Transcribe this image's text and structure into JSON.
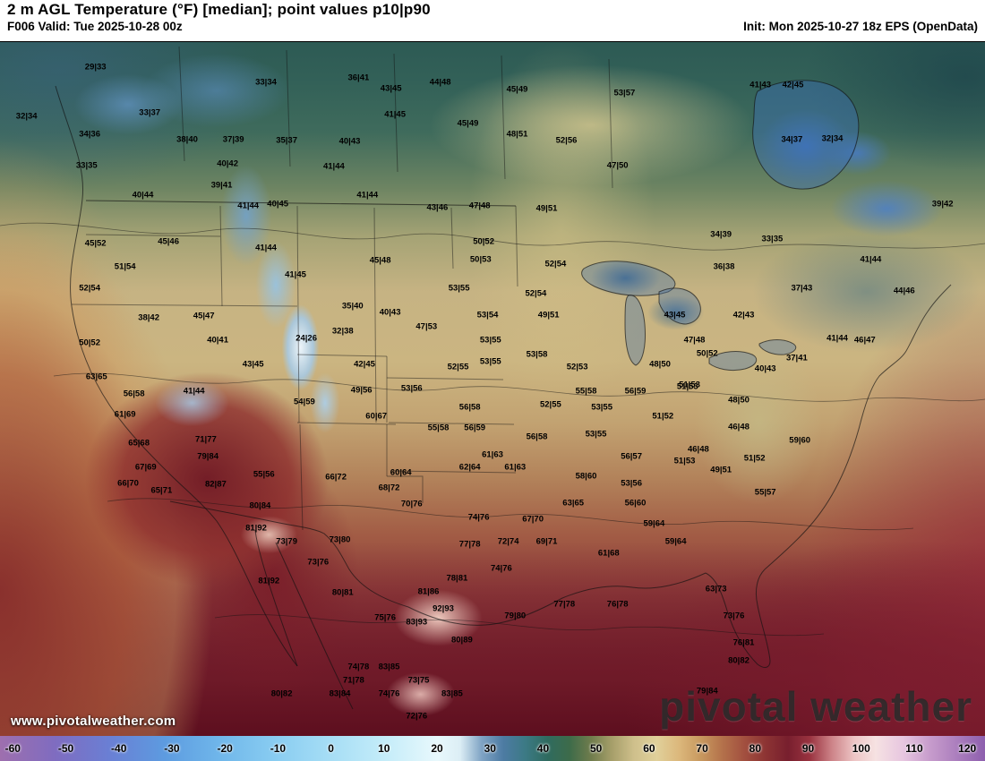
{
  "header": {
    "title": "2 m AGL Temperature (°F) [median]; point values p10|p90",
    "valid": "F006 Valid: Tue 2025-10-28 00z",
    "init": "Init: Mon 2025-10-27 18z EPS (OpenData)"
  },
  "watermark": {
    "site": "www.pivotalweather.com",
    "brand": "pivotal weather"
  },
  "colorbar": {
    "ticks": [
      -60,
      -50,
      -40,
      -30,
      -20,
      -10,
      0,
      10,
      20,
      30,
      40,
      50,
      60,
      70,
      80,
      90,
      100,
      110,
      120
    ],
    "stops": [
      {
        "t": -60,
        "c": "#9e6fae"
      },
      {
        "t": -50,
        "c": "#7f6cc0"
      },
      {
        "t": -40,
        "c": "#6a7fd4"
      },
      {
        "t": -30,
        "c": "#5d9be0"
      },
      {
        "t": -20,
        "c": "#6fb6ea"
      },
      {
        "t": -10,
        "c": "#88ccf1"
      },
      {
        "t": 0,
        "c": "#a5ddf5"
      },
      {
        "t": 10,
        "c": "#c3ecf9"
      },
      {
        "t": 20,
        "c": "#e8f8fc"
      },
      {
        "t": 24,
        "c": "#dceef5"
      },
      {
        "t": 28,
        "c": "#7fa3c4"
      },
      {
        "t": 32,
        "c": "#4d7ba3"
      },
      {
        "t": 36,
        "c": "#3c7a85"
      },
      {
        "t": 40,
        "c": "#2f6b5f"
      },
      {
        "t": 44,
        "c": "#3d6b4a"
      },
      {
        "t": 48,
        "c": "#6f7c4c"
      },
      {
        "t": 52,
        "c": "#a8a06b"
      },
      {
        "t": 56,
        "c": "#cfc08c"
      },
      {
        "t": 60,
        "c": "#e0d09a"
      },
      {
        "t": 64,
        "c": "#dcb87c"
      },
      {
        "t": 68,
        "c": "#c8995f"
      },
      {
        "t": 72,
        "c": "#b4724b"
      },
      {
        "t": 76,
        "c": "#a24f3f"
      },
      {
        "t": 80,
        "c": "#8c3333"
      },
      {
        "t": 84,
        "c": "#781f2e"
      },
      {
        "t": 88,
        "c": "#99323f"
      },
      {
        "t": 92,
        "c": "#cc8287"
      },
      {
        "t": 96,
        "c": "#edc4c4"
      },
      {
        "t": 100,
        "c": "#f6e2e2"
      },
      {
        "t": 105,
        "c": "#e7c6e0"
      },
      {
        "t": 110,
        "c": "#c79ccc"
      },
      {
        "t": 120,
        "c": "#8e5fae"
      }
    ]
  },
  "points": [
    {
      "x": 9.7,
      "y": 8.8,
      "v": "29|33"
    },
    {
      "x": 27.0,
      "y": 10.8,
      "v": "33|34"
    },
    {
      "x": 36.4,
      "y": 10.2,
      "v": "36|41"
    },
    {
      "x": 39.7,
      "y": 11.6,
      "v": "43|45"
    },
    {
      "x": 44.7,
      "y": 10.8,
      "v": "44|48"
    },
    {
      "x": 52.5,
      "y": 11.8,
      "v": "45|49"
    },
    {
      "x": 63.4,
      "y": 12.2,
      "v": "53|57"
    },
    {
      "x": 77.2,
      "y": 11.2,
      "v": "41|43"
    },
    {
      "x": 80.5,
      "y": 11.2,
      "v": "42|45"
    },
    {
      "x": 2.7,
      "y": 15.3,
      "v": "32|34"
    },
    {
      "x": 15.2,
      "y": 14.8,
      "v": "33|37"
    },
    {
      "x": 9.1,
      "y": 17.6,
      "v": "34|36"
    },
    {
      "x": 19.0,
      "y": 18.4,
      "v": "38|40"
    },
    {
      "x": 23.7,
      "y": 18.4,
      "v": "37|39"
    },
    {
      "x": 29.1,
      "y": 18.5,
      "v": "35|37"
    },
    {
      "x": 35.5,
      "y": 18.6,
      "v": "40|43"
    },
    {
      "x": 40.1,
      "y": 15.1,
      "v": "41|45"
    },
    {
      "x": 47.5,
      "y": 16.2,
      "v": "45|49"
    },
    {
      "x": 52.5,
      "y": 17.6,
      "v": "48|51"
    },
    {
      "x": 57.5,
      "y": 18.5,
      "v": "52|56"
    },
    {
      "x": 80.4,
      "y": 18.4,
      "v": "34|37"
    },
    {
      "x": 84.5,
      "y": 18.2,
      "v": "32|34"
    },
    {
      "x": 8.8,
      "y": 21.8,
      "v": "33|35"
    },
    {
      "x": 23.1,
      "y": 21.5,
      "v": "40|42"
    },
    {
      "x": 33.9,
      "y": 21.9,
      "v": "41|44"
    },
    {
      "x": 62.7,
      "y": 21.8,
      "v": "47|50"
    },
    {
      "x": 22.5,
      "y": 24.4,
      "v": "39|41"
    },
    {
      "x": 14.5,
      "y": 25.6,
      "v": "40|44"
    },
    {
      "x": 37.3,
      "y": 25.6,
      "v": "41|44"
    },
    {
      "x": 25.2,
      "y": 27.1,
      "v": "41|44"
    },
    {
      "x": 28.2,
      "y": 26.8,
      "v": "40|45"
    },
    {
      "x": 44.4,
      "y": 27.3,
      "v": "43|46"
    },
    {
      "x": 48.7,
      "y": 27.1,
      "v": "47|48"
    },
    {
      "x": 55.5,
      "y": 27.4,
      "v": "49|51"
    },
    {
      "x": 95.7,
      "y": 26.8,
      "v": "39|42"
    },
    {
      "x": 9.7,
      "y": 32.0,
      "v": "45|52"
    },
    {
      "x": 17.1,
      "y": 31.8,
      "v": "45|46"
    },
    {
      "x": 27.0,
      "y": 32.6,
      "v": "41|44"
    },
    {
      "x": 49.1,
      "y": 31.8,
      "v": "50|52"
    },
    {
      "x": 73.2,
      "y": 30.8,
      "v": "34|39"
    },
    {
      "x": 78.4,
      "y": 31.4,
      "v": "33|35"
    },
    {
      "x": 73.5,
      "y": 35.1,
      "v": "36|38"
    },
    {
      "x": 12.7,
      "y": 35.1,
      "v": "51|54"
    },
    {
      "x": 38.6,
      "y": 34.2,
      "v": "45|48"
    },
    {
      "x": 48.8,
      "y": 34.1,
      "v": "50|53"
    },
    {
      "x": 56.4,
      "y": 34.7,
      "v": "52|54"
    },
    {
      "x": 30.0,
      "y": 36.1,
      "v": "41|45"
    },
    {
      "x": 88.4,
      "y": 34.1,
      "v": "41|44"
    },
    {
      "x": 81.4,
      "y": 37.9,
      "v": "37|43"
    },
    {
      "x": 91.8,
      "y": 38.2,
      "v": "44|46"
    },
    {
      "x": 9.1,
      "y": 37.9,
      "v": "52|54"
    },
    {
      "x": 46.6,
      "y": 37.9,
      "v": "53|55"
    },
    {
      "x": 54.4,
      "y": 38.6,
      "v": "52|54"
    },
    {
      "x": 68.5,
      "y": 41.4,
      "v": "43|45"
    },
    {
      "x": 55.7,
      "y": 41.4,
      "v": "49|51"
    },
    {
      "x": 75.5,
      "y": 41.4,
      "v": "42|43"
    },
    {
      "x": 85.0,
      "y": 44.5,
      "v": "41|44"
    },
    {
      "x": 87.8,
      "y": 44.7,
      "v": "46|47"
    },
    {
      "x": 15.1,
      "y": 41.8,
      "v": "38|42"
    },
    {
      "x": 20.7,
      "y": 41.5,
      "v": "45|47"
    },
    {
      "x": 35.8,
      "y": 40.2,
      "v": "35|40"
    },
    {
      "x": 39.6,
      "y": 41.1,
      "v": "40|43"
    },
    {
      "x": 49.5,
      "y": 41.4,
      "v": "53|54"
    },
    {
      "x": 9.1,
      "y": 45.1,
      "v": "50|52"
    },
    {
      "x": 22.1,
      "y": 44.7,
      "v": "40|41"
    },
    {
      "x": 31.1,
      "y": 44.5,
      "v": "24|26"
    },
    {
      "x": 34.8,
      "y": 43.5,
      "v": "32|38"
    },
    {
      "x": 43.3,
      "y": 42.9,
      "v": "47|53"
    },
    {
      "x": 49.8,
      "y": 44.7,
      "v": "53|55"
    },
    {
      "x": 54.5,
      "y": 46.6,
      "v": "53|58"
    },
    {
      "x": 70.5,
      "y": 44.7,
      "v": "47|48"
    },
    {
      "x": 67.0,
      "y": 47.9,
      "v": "48|50"
    },
    {
      "x": 71.8,
      "y": 46.5,
      "v": "50|52"
    },
    {
      "x": 80.9,
      "y": 47.1,
      "v": "37|41"
    },
    {
      "x": 77.7,
      "y": 48.5,
      "v": "40|43"
    },
    {
      "x": 25.7,
      "y": 47.9,
      "v": "43|45"
    },
    {
      "x": 37.0,
      "y": 47.9,
      "v": "42|45"
    },
    {
      "x": 46.5,
      "y": 48.2,
      "v": "52|55"
    },
    {
      "x": 49.8,
      "y": 47.5,
      "v": "53|55"
    },
    {
      "x": 58.6,
      "y": 48.2,
      "v": "52|53"
    },
    {
      "x": 70.0,
      "y": 50.6,
      "v": "51|53"
    },
    {
      "x": 9.8,
      "y": 49.5,
      "v": "63|65"
    },
    {
      "x": 19.7,
      "y": 51.4,
      "v": "41|44"
    },
    {
      "x": 36.7,
      "y": 51.3,
      "v": "49|56"
    },
    {
      "x": 41.8,
      "y": 51.1,
      "v": "53|56"
    },
    {
      "x": 59.5,
      "y": 51.4,
      "v": "55|58"
    },
    {
      "x": 64.5,
      "y": 51.4,
      "v": "56|59"
    },
    {
      "x": 69.8,
      "y": 50.8,
      "v": "51|53"
    },
    {
      "x": 75.0,
      "y": 52.6,
      "v": "48|50"
    },
    {
      "x": 13.6,
      "y": 51.8,
      "v": "56|58"
    },
    {
      "x": 30.9,
      "y": 52.8,
      "v": "54|59"
    },
    {
      "x": 38.2,
      "y": 54.7,
      "v": "60|67"
    },
    {
      "x": 47.7,
      "y": 53.5,
      "v": "56|58"
    },
    {
      "x": 55.9,
      "y": 53.2,
      "v": "52|55"
    },
    {
      "x": 61.1,
      "y": 53.5,
      "v": "53|55"
    },
    {
      "x": 67.3,
      "y": 54.7,
      "v": "51|52"
    },
    {
      "x": 75.0,
      "y": 56.1,
      "v": "46|48"
    },
    {
      "x": 81.2,
      "y": 57.9,
      "v": "59|60"
    },
    {
      "x": 12.7,
      "y": 54.5,
      "v": "61|69"
    },
    {
      "x": 20.9,
      "y": 57.8,
      "v": "71|77"
    },
    {
      "x": 44.5,
      "y": 56.2,
      "v": "55|58"
    },
    {
      "x": 48.2,
      "y": 56.2,
      "v": "56|59"
    },
    {
      "x": 54.5,
      "y": 57.4,
      "v": "56|58"
    },
    {
      "x": 60.5,
      "y": 57.1,
      "v": "53|55"
    },
    {
      "x": 70.9,
      "y": 59.1,
      "v": "46|48"
    },
    {
      "x": 64.1,
      "y": 60.0,
      "v": "56|57"
    },
    {
      "x": 69.5,
      "y": 60.6,
      "v": "51|53"
    },
    {
      "x": 73.2,
      "y": 61.8,
      "v": "49|51"
    },
    {
      "x": 76.6,
      "y": 60.2,
      "v": "51|52"
    },
    {
      "x": 14.1,
      "y": 58.2,
      "v": "65|68"
    },
    {
      "x": 21.1,
      "y": 60.0,
      "v": "79|84"
    },
    {
      "x": 26.8,
      "y": 62.4,
      "v": "55|56"
    },
    {
      "x": 50.0,
      "y": 59.8,
      "v": "61|63"
    },
    {
      "x": 52.3,
      "y": 61.4,
      "v": "61|63"
    },
    {
      "x": 47.7,
      "y": 61.4,
      "v": "62|64"
    },
    {
      "x": 14.8,
      "y": 61.4,
      "v": "67|69"
    },
    {
      "x": 13.0,
      "y": 63.5,
      "v": "66|70"
    },
    {
      "x": 16.4,
      "y": 64.5,
      "v": "65|71"
    },
    {
      "x": 21.9,
      "y": 63.6,
      "v": "82|87"
    },
    {
      "x": 34.1,
      "y": 62.7,
      "v": "66|72"
    },
    {
      "x": 39.5,
      "y": 64.1,
      "v": "68|72"
    },
    {
      "x": 40.7,
      "y": 62.1,
      "v": "60|64"
    },
    {
      "x": 59.5,
      "y": 62.6,
      "v": "58|60"
    },
    {
      "x": 64.1,
      "y": 63.5,
      "v": "53|56"
    },
    {
      "x": 77.7,
      "y": 64.7,
      "v": "55|57"
    },
    {
      "x": 41.8,
      "y": 66.2,
      "v": "70|76"
    },
    {
      "x": 58.2,
      "y": 66.1,
      "v": "63|65"
    },
    {
      "x": 64.5,
      "y": 66.1,
      "v": "56|60"
    },
    {
      "x": 26.4,
      "y": 66.5,
      "v": "80|84"
    },
    {
      "x": 48.6,
      "y": 68.0,
      "v": "74|76"
    },
    {
      "x": 54.1,
      "y": 68.2,
      "v": "67|70"
    },
    {
      "x": 66.4,
      "y": 68.8,
      "v": "59|64"
    },
    {
      "x": 26.0,
      "y": 69.4,
      "v": "81|92"
    },
    {
      "x": 29.1,
      "y": 71.2,
      "v": "73|79"
    },
    {
      "x": 34.5,
      "y": 70.9,
      "v": "73|80"
    },
    {
      "x": 47.7,
      "y": 71.5,
      "v": "77|78"
    },
    {
      "x": 51.6,
      "y": 71.2,
      "v": "72|74"
    },
    {
      "x": 55.5,
      "y": 71.2,
      "v": "69|71"
    },
    {
      "x": 50.9,
      "y": 74.7,
      "v": "74|76"
    },
    {
      "x": 61.8,
      "y": 72.7,
      "v": "61|68"
    },
    {
      "x": 68.6,
      "y": 71.2,
      "v": "59|64"
    },
    {
      "x": 46.4,
      "y": 76.0,
      "v": "78|81"
    },
    {
      "x": 43.5,
      "y": 77.8,
      "v": "81|86"
    },
    {
      "x": 34.8,
      "y": 77.9,
      "v": "80|81"
    },
    {
      "x": 32.3,
      "y": 73.9,
      "v": "73|76"
    },
    {
      "x": 72.7,
      "y": 77.4,
      "v": "63|73"
    },
    {
      "x": 74.5,
      "y": 80.9,
      "v": "73|76"
    },
    {
      "x": 62.7,
      "y": 79.4,
      "v": "76|78"
    },
    {
      "x": 57.3,
      "y": 79.4,
      "v": "77|78"
    },
    {
      "x": 52.3,
      "y": 80.9,
      "v": "79|80"
    },
    {
      "x": 75.5,
      "y": 84.5,
      "v": "76|81"
    },
    {
      "x": 75.0,
      "y": 86.8,
      "v": "80|82"
    },
    {
      "x": 71.8,
      "y": 90.8,
      "v": "79|84"
    },
    {
      "x": 45.0,
      "y": 80.0,
      "v": "92|93"
    },
    {
      "x": 42.3,
      "y": 81.8,
      "v": "83|93"
    },
    {
      "x": 46.9,
      "y": 84.1,
      "v": "80|89"
    },
    {
      "x": 39.1,
      "y": 81.2,
      "v": "75|76"
    },
    {
      "x": 36.4,
      "y": 87.6,
      "v": "74|78"
    },
    {
      "x": 39.5,
      "y": 87.6,
      "v": "83|85"
    },
    {
      "x": 42.5,
      "y": 89.4,
      "v": "73|75"
    },
    {
      "x": 35.9,
      "y": 89.4,
      "v": "71|78"
    },
    {
      "x": 28.6,
      "y": 91.2,
      "v": "80|82"
    },
    {
      "x": 34.5,
      "y": 91.2,
      "v": "83|84"
    },
    {
      "x": 39.5,
      "y": 91.2,
      "v": "74|76"
    },
    {
      "x": 45.9,
      "y": 91.2,
      "v": "83|85"
    },
    {
      "x": 42.3,
      "y": 94.1,
      "v": "72|76"
    },
    {
      "x": 27.3,
      "y": 76.4,
      "v": "81|92"
    }
  ]
}
